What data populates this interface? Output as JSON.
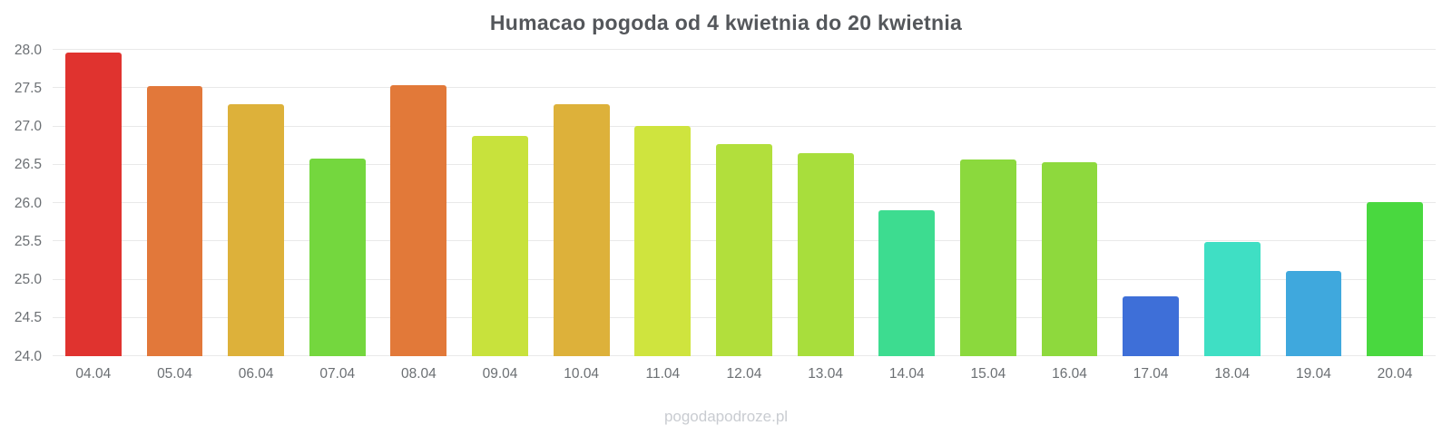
{
  "chart_data": {
    "type": "bar",
    "title": "Humacao pogoda od 4 kwietnia do 20 kwietnia",
    "categories": [
      "04.04",
      "05.04",
      "06.04",
      "07.04",
      "08.04",
      "09.04",
      "10.04",
      "11.04",
      "12.04",
      "13.04",
      "14.04",
      "15.04",
      "16.04",
      "17.04",
      "18.04",
      "19.04",
      "20.04"
    ],
    "values": [
      27.97,
      27.53,
      27.29,
      26.58,
      27.54,
      26.88,
      27.29,
      27.01,
      26.77,
      26.65,
      25.91,
      26.57,
      26.53,
      24.78,
      25.49,
      25.11,
      26.01
    ],
    "bar_colors": [
      "#e0332f",
      "#e2783a",
      "#ddb13a",
      "#74d73e",
      "#e27939",
      "#c8e23c",
      "#ddb13a",
      "#cfe43e",
      "#b2df3c",
      "#a8de3c",
      "#3ddc90",
      "#8bd93d",
      "#8ed93d",
      "#3e6fd8",
      "#3fdfc4",
      "#3fa8dd",
      "#49d83f"
    ],
    "xlabel": "",
    "ylabel": "",
    "ylim": [
      24.0,
      28.0
    ],
    "yticks": [
      24.0,
      24.5,
      25.0,
      25.5,
      26.0,
      26.5,
      27.0,
      27.5,
      28.0
    ],
    "grid": true,
    "legend": false
  },
  "footer": {
    "watermark": "pogodapodroze.pl"
  }
}
